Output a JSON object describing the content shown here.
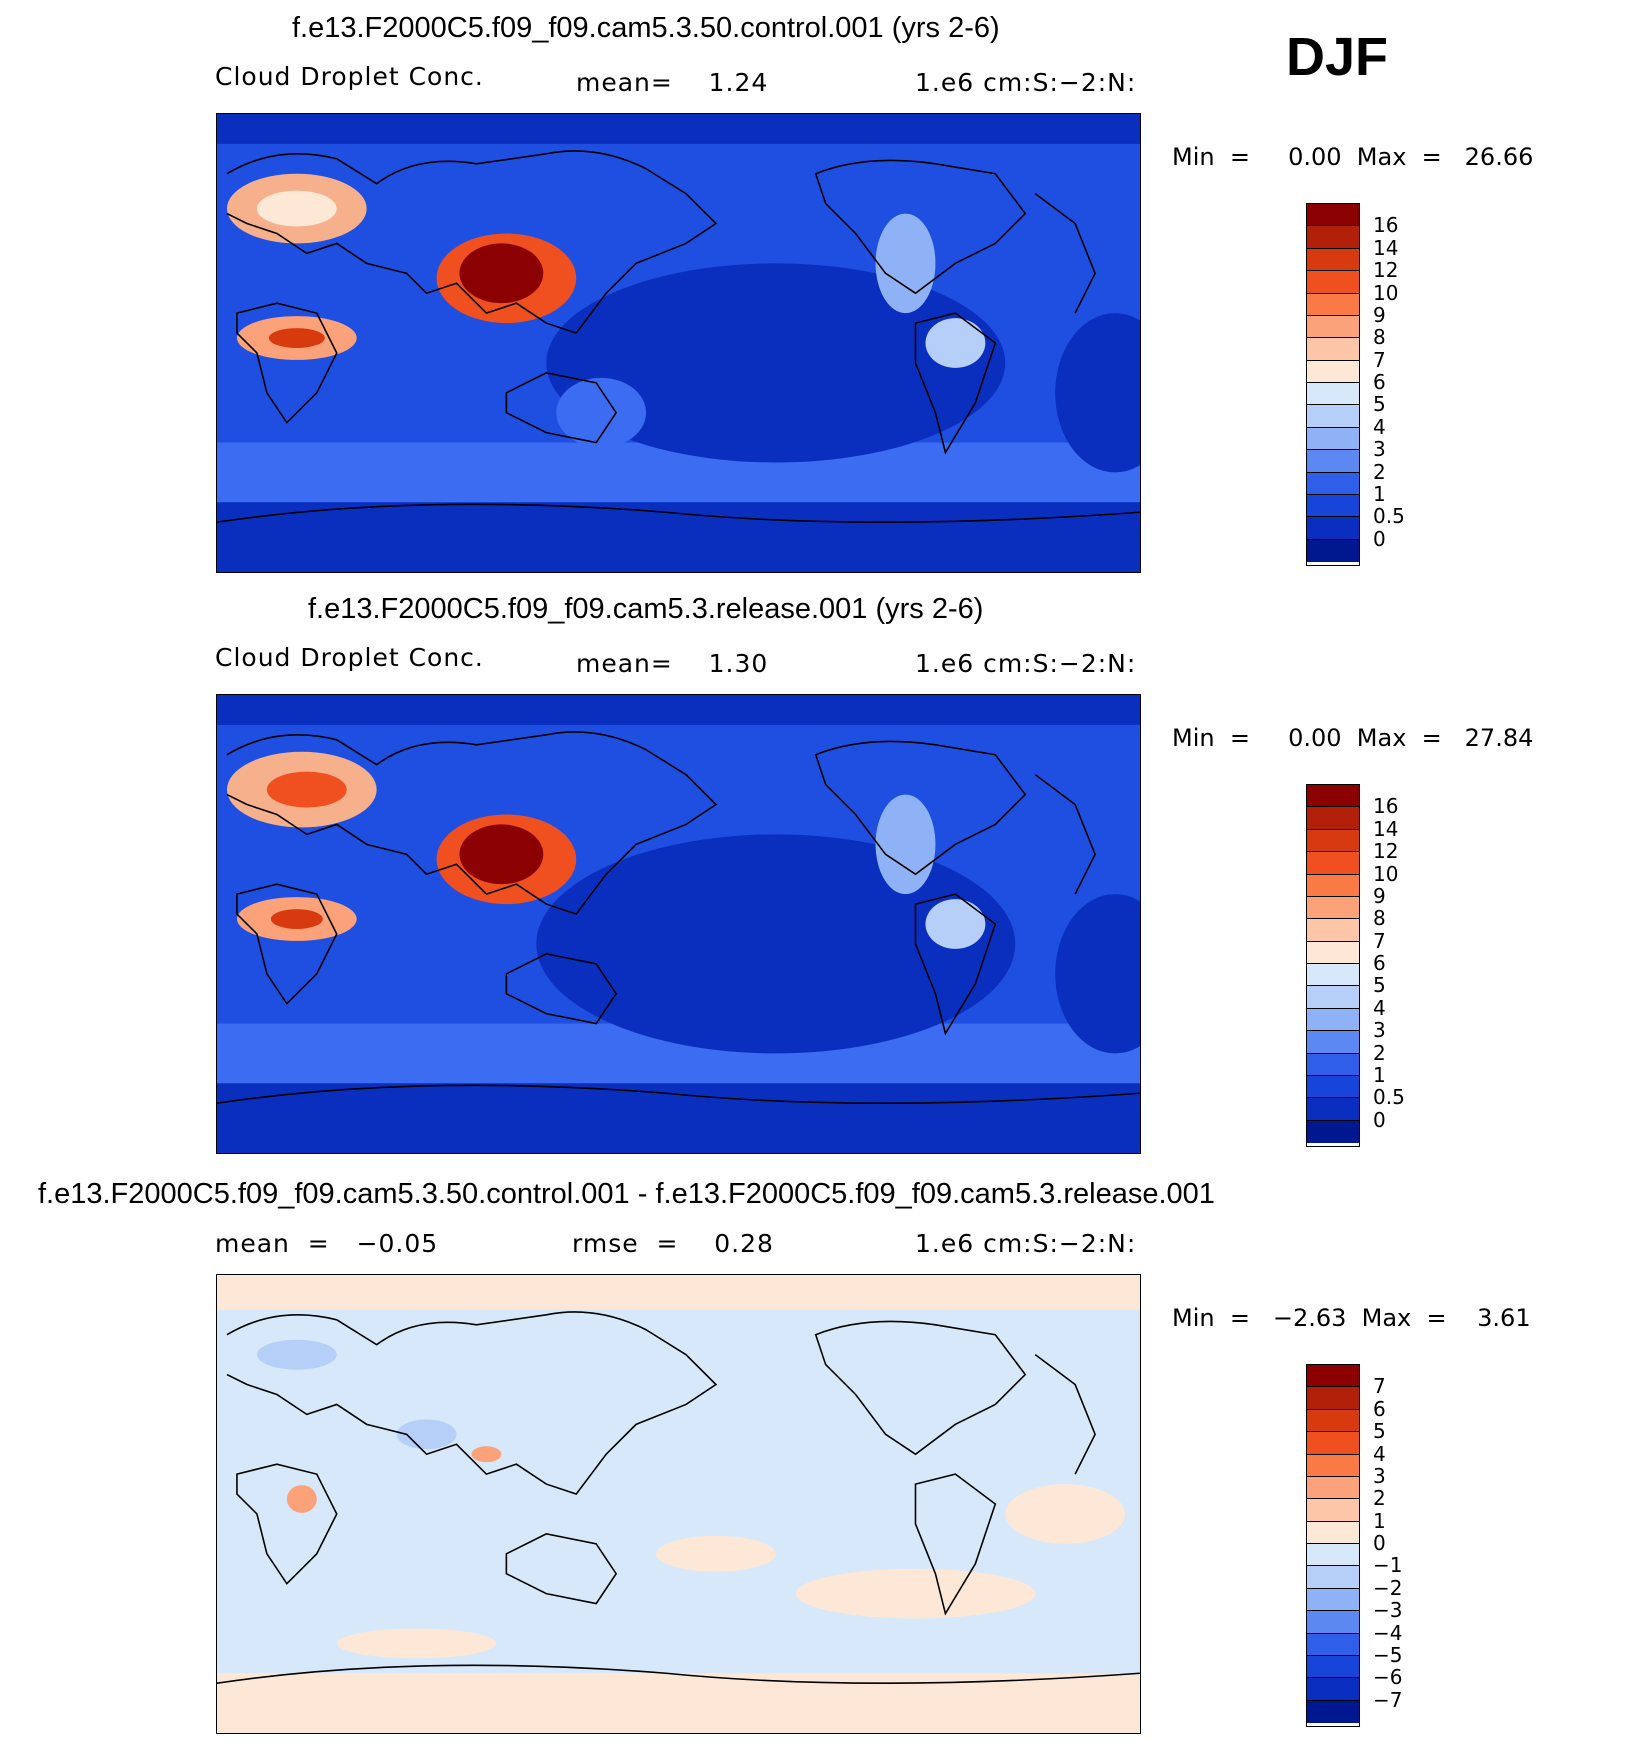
{
  "season": "DJF",
  "colors": {
    "ocean_low": "#0a2fbf",
    "ocean_mid": "#1e4fe0",
    "ocean_band": "#3b6cf2",
    "land_bg": "#2a57e8",
    "hot": "#c41e10",
    "warm": "#f26a3a",
    "diff_bg": "#d6e8fa",
    "diff_pos": "#fde8d8",
    "coast": "#000000"
  },
  "scale_a": {
    "labels": [
      "16",
      "14",
      "12",
      "10",
      "9",
      "8",
      "7",
      "6",
      "5",
      "4",
      "3",
      "2",
      "1",
      "0.5",
      "0"
    ],
    "colors": [
      "#8b0000",
      "#b3200a",
      "#d83a10",
      "#f04f20",
      "#fa7a45",
      "#fca27a",
      "#fdc6a8",
      "#fde8d6",
      "#d8e8fb",
      "#b5cff8",
      "#8fb2f7",
      "#5c88f2",
      "#2f5fe8",
      "#1845d9",
      "#0a2ebf",
      "#00188f"
    ]
  },
  "scale_diff": {
    "labels": [
      "7",
      "6",
      "5",
      "4",
      "3",
      "2",
      "1",
      "0",
      "−1",
      "−2",
      "−3",
      "−4",
      "−5",
      "−6",
      "−7"
    ],
    "colors": [
      "#8b0000",
      "#b3200a",
      "#d83a10",
      "#f04f20",
      "#fa7a45",
      "#fca27a",
      "#fdc6a8",
      "#fde8d6",
      "#d8e8fb",
      "#b5cff8",
      "#8fb2f7",
      "#5c88f2",
      "#2f5fe8",
      "#1845d9",
      "#0a2ebf",
      "#00188f"
    ]
  },
  "panels": [
    {
      "title": "f.e13.F2000C5.f09_f09.cam5.3.50.control.001 (yrs 2-6)",
      "left_label": "Cloud Droplet Conc.",
      "center_label": "mean=    1.24",
      "right_label": "1.e6 cm:S:−2:N:",
      "min_label": "Min  =     0.00  Max  =   26.66"
    },
    {
      "title": "f.e13.F2000C5.f09_f09.cam5.3.release.001 (yrs 2-6)",
      "left_label": "Cloud Droplet Conc.",
      "center_label": "mean=    1.30",
      "right_label": "1.e6 cm:S:−2:N:",
      "min_label": "Min  =     0.00  Max  =   27.84"
    },
    {
      "title": "f.e13.F2000C5.f09_f09.cam5.3.50.control.001 - f.e13.F2000C5.f09_f09.cam5.3.release.001",
      "left_label": "mean  =   −0.05",
      "center_label": "rmse  =    0.28",
      "right_label": "1.e6 cm:S:−2:N:",
      "min_label": "Min  =   −2.63  Max  =    3.61"
    }
  ]
}
